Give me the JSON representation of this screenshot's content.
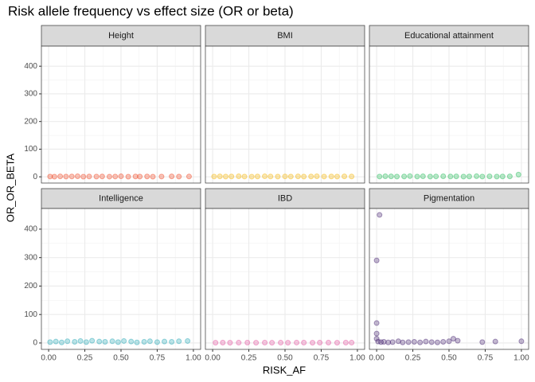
{
  "title": "Risk allele frequency vs effect size (OR or beta)",
  "x_label": "RISK_AF",
  "y_label": "OR_OR_BETA",
  "chart_data": {
    "type": "scatter",
    "grid": true,
    "xlim": [
      -0.05,
      1.05
    ],
    "ylim": [
      -22.5,
      472.5
    ],
    "xticks": [
      {
        "value": 0,
        "label": "0.00"
      },
      {
        "value": 0.25,
        "label": "0.25"
      },
      {
        "value": 0.5,
        "label": "0.50"
      },
      {
        "value": 0.75,
        "label": "0.75"
      },
      {
        "value": 1,
        "label": "1.00"
      }
    ],
    "yticks": [
      0,
      100,
      200,
      300,
      400
    ],
    "facets": [
      {
        "name": "Height",
        "color": "#f0401a",
        "x": [
          0.01,
          0.04,
          0.08,
          0.12,
          0.16,
          0.2,
          0.24,
          0.28,
          0.33,
          0.37,
          0.42,
          0.46,
          0.5,
          0.55,
          0.6,
          0.63,
          0.68,
          0.72,
          0.78,
          0.85,
          0.9,
          0.97
        ],
        "values": [
          1,
          0.5,
          1.5,
          0.8,
          1.2,
          2,
          0.6,
          1.1,
          0.9,
          1.4,
          0.7,
          1,
          1.8,
          0.5,
          1.2,
          0.9,
          1.3,
          0.6,
          1,
          1.5,
          0.8,
          1.1
        ]
      },
      {
        "name": "BMI",
        "color": "#f5b400",
        "x": [
          0.01,
          0.05,
          0.09,
          0.13,
          0.18,
          0.22,
          0.27,
          0.31,
          0.36,
          0.4,
          0.45,
          0.5,
          0.54,
          0.59,
          0.63,
          0.68,
          0.72,
          0.77,
          0.82,
          0.86,
          0.91,
          0.96
        ],
        "values": [
          1,
          1.5,
          0.8,
          1.2,
          2,
          1,
          0.7,
          1.3,
          1.8,
          1.1,
          0.9,
          1.4,
          1,
          1.6,
          0.8,
          1.2,
          1.9,
          1,
          1.3,
          0.9,
          1.5,
          1.1
        ]
      },
      {
        "name": "Educational attainment",
        "color": "#1db954",
        "x": [
          0.02,
          0.06,
          0.1,
          0.14,
          0.19,
          0.23,
          0.28,
          0.32,
          0.37,
          0.41,
          0.46,
          0.51,
          0.55,
          0.6,
          0.64,
          0.69,
          0.73,
          0.78,
          0.83,
          0.87,
          0.92,
          0.98
        ],
        "values": [
          1,
          2,
          1.5,
          0.8,
          1.2,
          2.5,
          1,
          1.8,
          0.9,
          1.4,
          2,
          1.1,
          1.6,
          0.9,
          1.3,
          2.2,
          1,
          1.5,
          0.8,
          1.2,
          1.7,
          8
        ]
      },
      {
        "name": "Intelligence",
        "color": "#1fa4b4",
        "x": [
          0.01,
          0.05,
          0.09,
          0.13,
          0.18,
          0.22,
          0.26,
          0.3,
          0.35,
          0.39,
          0.44,
          0.48,
          0.52,
          0.57,
          0.61,
          0.66,
          0.7,
          0.75,
          0.8,
          0.85,
          0.9,
          0.96
        ],
        "values": [
          3,
          5,
          2,
          6,
          4,
          7,
          3,
          8,
          5,
          4,
          6,
          3,
          7,
          5,
          2,
          4,
          6,
          3,
          5,
          4,
          6,
          7
        ]
      },
      {
        "name": "IBD",
        "color": "#e04b9a",
        "x": [
          0.02,
          0.07,
          0.12,
          0.18,
          0.24,
          0.3,
          0.36,
          0.41,
          0.47,
          0.52,
          0.58,
          0.63,
          0.69,
          0.74,
          0.8,
          0.86,
          0.92,
          0.96
        ],
        "values": [
          1,
          1.2,
          0.9,
          1.1,
          1.3,
          1,
          1.2,
          0.8,
          1.1,
          1,
          1.4,
          1.2,
          0.9,
          1.1,
          1.3,
          1,
          1.2,
          1.1
        ]
      },
      {
        "name": "Pigmentation",
        "color": "#3f1a6b",
        "x": [
          0.02,
          0,
          0,
          0,
          0,
          0.01,
          0.03,
          0.05,
          0.08,
          0.11,
          0.15,
          0.18,
          0.22,
          0.26,
          0.3,
          0.34,
          0.38,
          0.42,
          0.46,
          0.5,
          0.53,
          0.56,
          0.73,
          0.82,
          1
        ],
        "values": [
          450,
          290,
          70,
          33,
          15,
          5,
          3,
          4,
          2,
          3,
          6,
          2,
          3,
          4,
          2,
          5,
          3,
          2,
          4,
          6,
          15,
          8,
          3,
          5,
          6
        ]
      }
    ]
  }
}
